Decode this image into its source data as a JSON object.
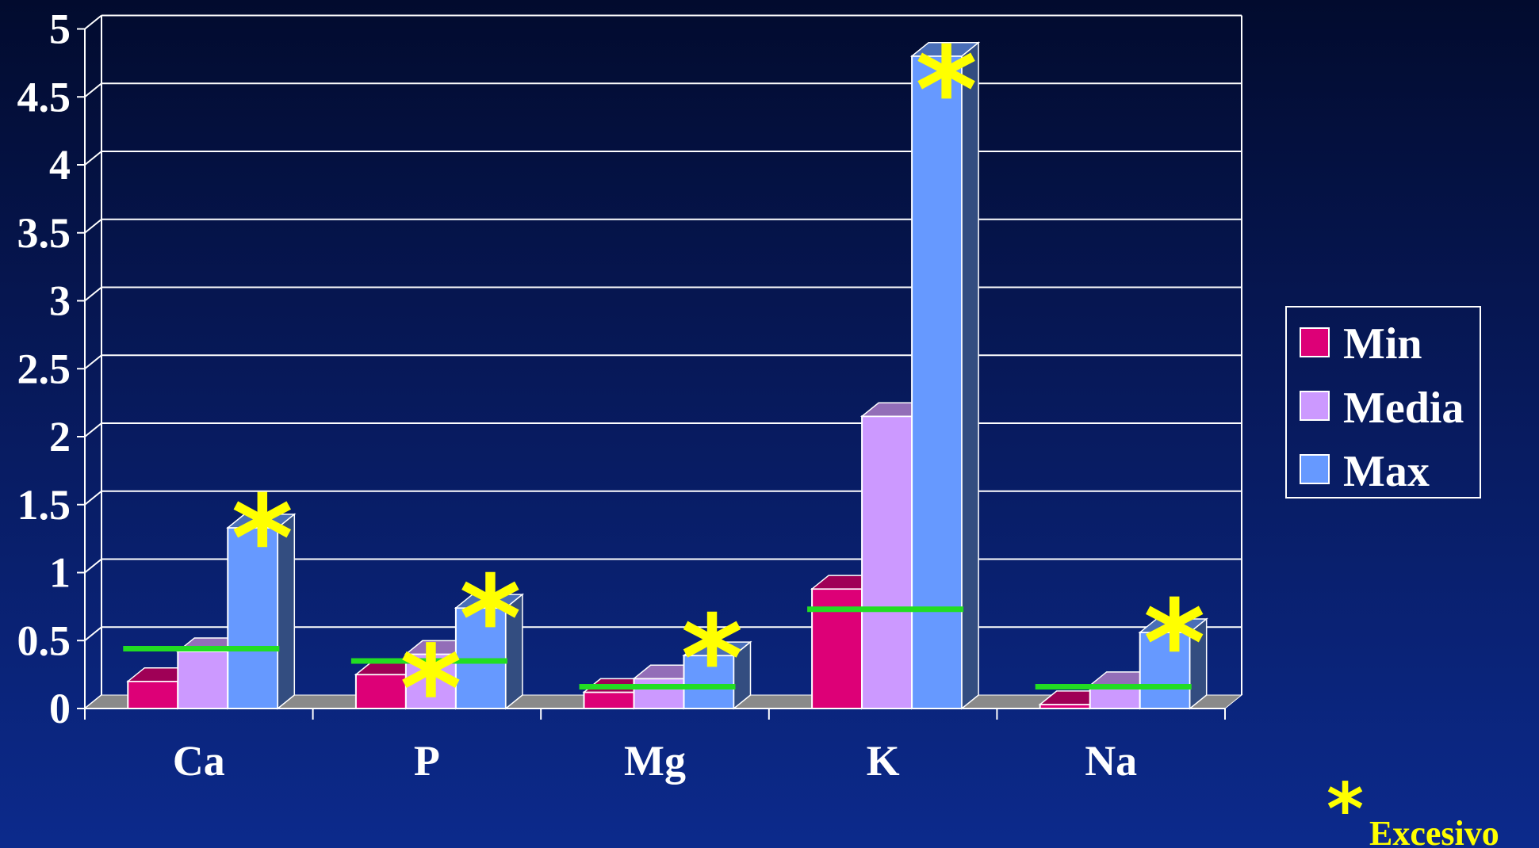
{
  "chart_data": {
    "type": "bar",
    "title": "",
    "xlabel": "",
    "ylabel": "",
    "ylim": [
      0,
      5
    ],
    "yticks": [
      "0",
      "0.5",
      "1",
      "1.5",
      "2",
      "2.5",
      "3",
      "3.5",
      "4",
      "4.5",
      "5"
    ],
    "categories": [
      "Ca",
      "P",
      "Mg",
      "K",
      "Na"
    ],
    "series": [
      {
        "name": "Min",
        "color": "#dd0077",
        "values": [
          0.2,
          0.25,
          0.12,
          0.88,
          0.03
        ]
      },
      {
        "name": "Media",
        "color": "#cc99ff",
        "values": [
          0.42,
          0.4,
          0.22,
          2.15,
          0.17
        ]
      },
      {
        "name": "Max",
        "color": "#6699ff",
        "values": [
          1.33,
          0.74,
          0.39,
          4.8,
          0.56
        ]
      }
    ],
    "reference_levels": {
      "color": "#22dd22",
      "values": [
        0.44,
        0.35,
        0.16,
        0.73,
        0.16
      ]
    },
    "annotations": [
      {
        "category": "Ca",
        "series": "Max",
        "symbol": "*"
      },
      {
        "category": "P",
        "series": "Media",
        "symbol": "*"
      },
      {
        "category": "P",
        "series": "Max",
        "symbol": "*"
      },
      {
        "category": "Mg",
        "series": "Max",
        "symbol": "*"
      },
      {
        "category": "K",
        "series": "Max",
        "symbol": "*"
      },
      {
        "category": "Na",
        "series": "Max",
        "symbol": "*"
      }
    ],
    "legend": {
      "position": "right",
      "entries": [
        "Min",
        "Media",
        "Max"
      ]
    },
    "grid": true
  },
  "footnote": {
    "symbol": "*",
    "text": "Excesivo"
  }
}
